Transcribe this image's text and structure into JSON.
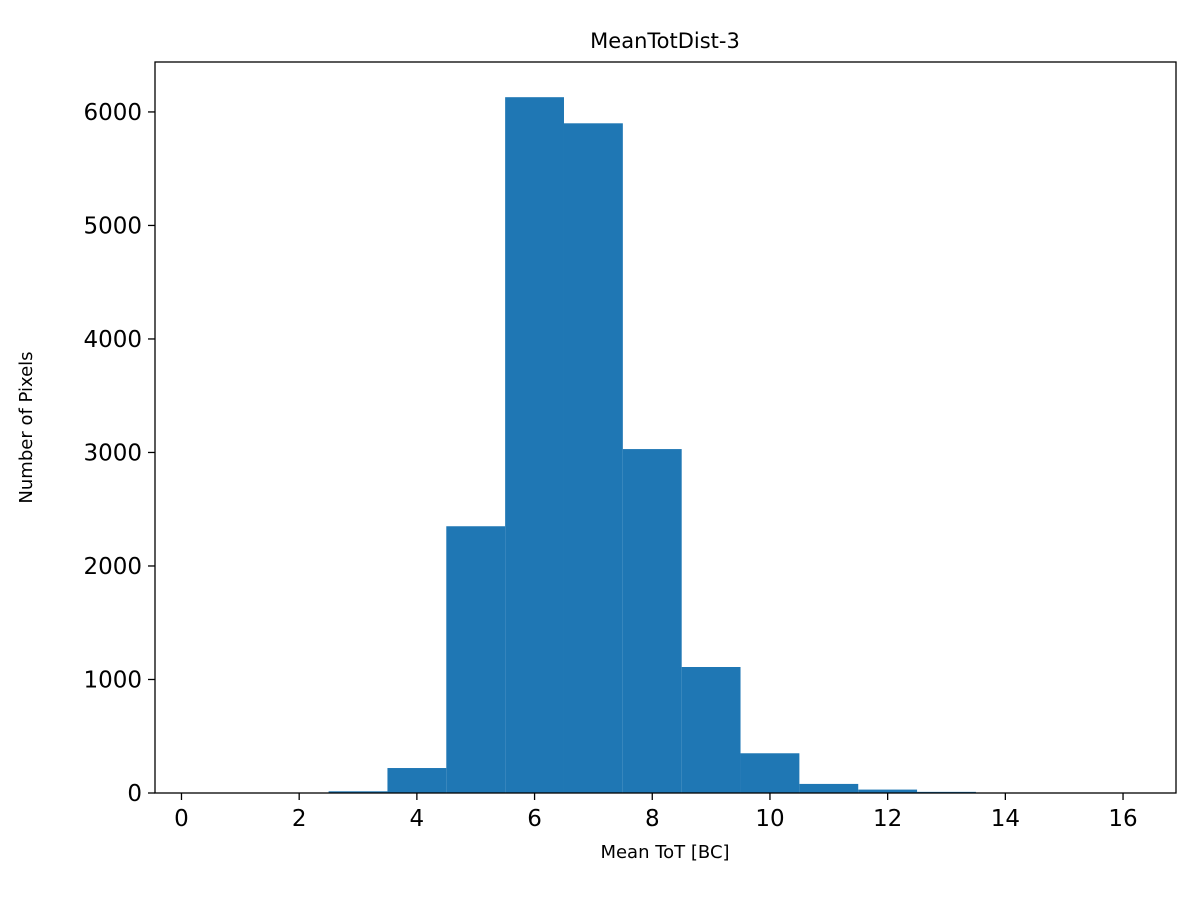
{
  "figure": {
    "background_color": "#ffffff",
    "axis_color": "#000000"
  },
  "chart_data": {
    "type": "bar",
    "subtype": "histogram",
    "title": "MeanTotDist-3",
    "xlabel": "Mean ToT [BC]",
    "ylabel": "Number of Pixels",
    "bar_color": "#1f77b4",
    "bin_edges": [
      2.5,
      3.5,
      4.5,
      5.5,
      6.5,
      7.5,
      8.5,
      9.5,
      10.5,
      11.5,
      12.5,
      13.5
    ],
    "counts": [
      15,
      220,
      2350,
      6130,
      5900,
      3030,
      1110,
      350,
      80,
      30,
      10
    ],
    "xticks": [
      0,
      2,
      4,
      6,
      8,
      10,
      12,
      14,
      16
    ],
    "yticks": [
      0,
      1000,
      2000,
      3000,
      4000,
      5000,
      6000
    ],
    "xlim": [
      -0.45,
      16.9
    ],
    "ylim": [
      0,
      6440
    ],
    "grid": false,
    "legend_position": "none"
  }
}
